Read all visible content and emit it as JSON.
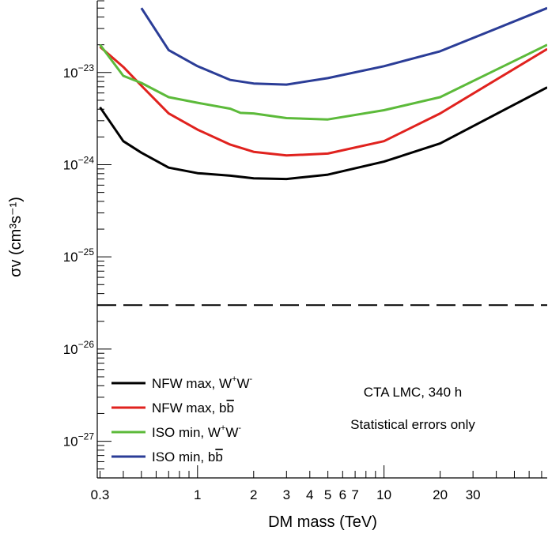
{
  "chart_data": {
    "type": "line",
    "xlabel": "DM mass (TeV)",
    "ylabel": "σv (cm³s⁻¹)",
    "x_scale": "log",
    "y_scale": "log",
    "xlim": [
      0.29,
      75
    ],
    "ylim": [
      4e-28,
      6e-23
    ],
    "x_tick_labels": [
      {
        "value": 0.3,
        "label": "0.3"
      },
      {
        "value": 1,
        "label": "1"
      },
      {
        "value": 2,
        "label": "2"
      },
      {
        "value": 3,
        "label": "3"
      },
      {
        "value": 4,
        "label": "4"
      },
      {
        "value": 5,
        "label": "5"
      },
      {
        "value": 6,
        "label": "6"
      },
      {
        "value": 7,
        "label": "7"
      },
      {
        "value": 10,
        "label": "10"
      },
      {
        "value": 20,
        "label": "20"
      },
      {
        "value": 30,
        "label": "30"
      }
    ],
    "y_tick_exponents": [
      -23,
      -24,
      -25,
      -26,
      -27
    ],
    "reference_line": {
      "y": 3e-26,
      "style": "dashed",
      "color": "#000000"
    },
    "series": [
      {
        "name": "NFW max, W⁺W⁻",
        "color": "#000000",
        "x": [
          0.3,
          0.4,
          0.5,
          0.7,
          1,
          1.5,
          2,
          3,
          5,
          10,
          20,
          75
        ],
        "y": [
          4.2e-24,
          1.8e-24,
          1.35e-24,
          9.3e-25,
          8.1e-25,
          7.6e-25,
          7.1e-25,
          7e-25,
          7.8e-25,
          1.08e-24,
          1.7e-24,
          6.9e-24
        ]
      },
      {
        "name": "NFW max, bb̄",
        "color": "#e0221e",
        "x": [
          0.3,
          0.4,
          0.5,
          0.7,
          1,
          1.5,
          2,
          3,
          5,
          10,
          20,
          75
        ],
        "y": [
          1.9e-23,
          1.15e-23,
          7.2e-24,
          3.6e-24,
          2.4e-24,
          1.65e-24,
          1.38e-24,
          1.26e-24,
          1.32e-24,
          1.8e-24,
          3.6e-24,
          1.8e-23
        ]
      },
      {
        "name": "ISO min, W⁺W⁻",
        "color": "#5cba3a",
        "x": [
          0.3,
          0.4,
          0.5,
          0.7,
          1,
          1.5,
          1.7,
          2,
          3,
          5,
          10,
          20,
          75
        ],
        "y": [
          2e-23,
          9.2e-24,
          7.7e-24,
          5.4e-24,
          4.7e-24,
          4.05e-24,
          3.65e-24,
          3.6e-24,
          3.2e-24,
          3.1e-24,
          3.9e-24,
          5.4e-24,
          2e-23
        ]
      },
      {
        "name": "ISO min, bb̄",
        "color": "#2b3d97",
        "x": [
          0.5,
          0.7,
          1,
          1.5,
          2,
          3,
          5,
          10,
          20,
          75
        ],
        "y": [
          5e-23,
          1.75e-23,
          1.17e-23,
          8.3e-24,
          7.6e-24,
          7.4e-24,
          8.7e-24,
          1.17e-23,
          1.7e-23,
          5e-23
        ]
      }
    ],
    "legend": {
      "placement": "bottom-left",
      "entries": [
        {
          "label": "NFW max, W⁺W⁻",
          "color": "#000000"
        },
        {
          "label": "NFW max, bb̄",
          "color": "#e0221e"
        },
        {
          "label": "ISO min, W⁺W⁻",
          "color": "#5cba3a"
        },
        {
          "label": "ISO min, bb̄",
          "color": "#2b3d97"
        }
      ]
    },
    "annotations": [
      "CTA LMC, 340 h",
      "Statistical errors only"
    ]
  }
}
